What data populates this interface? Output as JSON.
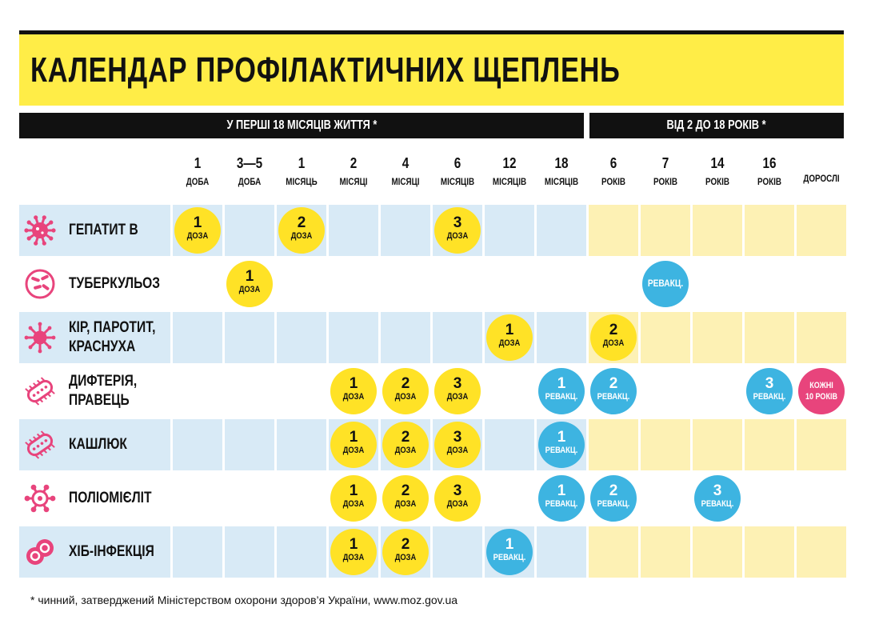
{
  "title": "КАЛЕНДАР ПРОФІЛАКТИЧНИХ ЩЕПЛЕНЬ",
  "sections": {
    "infant": "У ПЕРШІ 18 МІСЯЦІВ ЖИТТЯ *",
    "older": "ВІД 2 ДО 18 РОКІВ *"
  },
  "columns": [
    {
      "num": "1",
      "unit": "ДОБА"
    },
    {
      "num": "3—5",
      "unit": "ДОБА"
    },
    {
      "num": "1",
      "unit": "МІСЯЦЬ"
    },
    {
      "num": "2",
      "unit": "МІСЯЦІ"
    },
    {
      "num": "4",
      "unit": "МІСЯЦІ"
    },
    {
      "num": "6",
      "unit": "МІСЯЦІВ"
    },
    {
      "num": "12",
      "unit": "МІСЯЦІВ"
    },
    {
      "num": "18",
      "unit": "МІСЯЦІВ"
    },
    {
      "num": "6",
      "unit": "РОКІВ"
    },
    {
      "num": "7",
      "unit": "РОКІВ"
    },
    {
      "num": "14",
      "unit": "РОКІВ"
    },
    {
      "num": "16",
      "unit": "РОКІВ"
    },
    {
      "num": "",
      "unit": "ДОРОСЛІ"
    }
  ],
  "rows": [
    {
      "lines": [
        "ГЕПАТИТ В"
      ],
      "icon": "virus-icon",
      "shaded": true,
      "doses": [
        {
          "col": 0,
          "num": "1",
          "unit": "ДОЗА",
          "color": "yellow"
        },
        {
          "col": 2,
          "num": "2",
          "unit": "ДОЗА",
          "color": "yellow"
        },
        {
          "col": 5,
          "num": "3",
          "unit": "ДОЗА",
          "color": "yellow"
        }
      ]
    },
    {
      "lines": [
        "ТУБЕРКУЛЬОЗ"
      ],
      "icon": "bacteria-icon",
      "shaded": false,
      "doses": [
        {
          "col": 1,
          "num": "1",
          "unit": "ДОЗА",
          "color": "yellow"
        },
        {
          "col": 9,
          "num": "",
          "unit": "РЕВАКЦ.",
          "color": "blue"
        }
      ]
    },
    {
      "lines": [
        "КІР, ПАРОТИТ,",
        "КРАСНУХА"
      ],
      "icon": "measles-virus-icon",
      "shaded": true,
      "doses": [
        {
          "col": 6,
          "num": "1",
          "unit": "ДОЗА",
          "color": "yellow"
        },
        {
          "col": 8,
          "num": "2",
          "unit": "ДОЗА",
          "color": "yellow"
        }
      ]
    },
    {
      "lines": [
        "ДИФТЕРІЯ,",
        "ПРАВЕЦЬ"
      ],
      "icon": "bacillus-icon",
      "shaded": false,
      "doses": [
        {
          "col": 3,
          "num": "1",
          "unit": "ДОЗА",
          "color": "yellow"
        },
        {
          "col": 4,
          "num": "2",
          "unit": "ДОЗА",
          "color": "yellow"
        },
        {
          "col": 5,
          "num": "3",
          "unit": "ДОЗА",
          "color": "yellow"
        },
        {
          "col": 7,
          "num": "1",
          "unit": "РЕВАКЦ.",
          "color": "blue"
        },
        {
          "col": 8,
          "num": "2",
          "unit": "РЕВАКЦ.",
          "color": "blue"
        },
        {
          "col": 11,
          "num": "3",
          "unit": "РЕВАКЦ.",
          "color": "blue"
        },
        {
          "col": 12,
          "num": "КОЖНІ",
          "unit": "10 РОКІВ",
          "color": "pink"
        }
      ]
    },
    {
      "lines": [
        "КАШЛЮК"
      ],
      "icon": "bacillus-icon",
      "shaded": true,
      "doses": [
        {
          "col": 3,
          "num": "1",
          "unit": "ДОЗА",
          "color": "yellow"
        },
        {
          "col": 4,
          "num": "2",
          "unit": "ДОЗА",
          "color": "yellow"
        },
        {
          "col": 5,
          "num": "3",
          "unit": "ДОЗА",
          "color": "yellow"
        },
        {
          "col": 7,
          "num": "1",
          "unit": "РЕВАКЦ.",
          "color": "blue"
        }
      ]
    },
    {
      "lines": [
        "ПОЛІОМІЄЛІТ"
      ],
      "icon": "polio-virus-icon",
      "shaded": false,
      "doses": [
        {
          "col": 3,
          "num": "1",
          "unit": "ДОЗА",
          "color": "yellow"
        },
        {
          "col": 4,
          "num": "2",
          "unit": "ДОЗА",
          "color": "yellow"
        },
        {
          "col": 5,
          "num": "3",
          "unit": "ДОЗА",
          "color": "yellow"
        },
        {
          "col": 7,
          "num": "1",
          "unit": "РЕВАКЦ.",
          "color": "blue"
        },
        {
          "col": 8,
          "num": "2",
          "unit": "РЕВАКЦ.",
          "color": "blue"
        },
        {
          "col": 10,
          "num": "3",
          "unit": "РЕВАКЦ.",
          "color": "blue"
        }
      ]
    },
    {
      "lines": [
        "ХІБ-ІНФЕКЦІЯ"
      ],
      "icon": "hib-cell-icon",
      "shaded": true,
      "doses": [
        {
          "col": 3,
          "num": "1",
          "unit": "ДОЗА",
          "color": "yellow"
        },
        {
          "col": 4,
          "num": "2",
          "unit": "ДОЗА",
          "color": "yellow"
        },
        {
          "col": 6,
          "num": "1",
          "unit": "РЕВАКЦ.",
          "color": "blue"
        }
      ]
    }
  ],
  "colors": {
    "banner": "#ffed47",
    "infant_shade": "#d8eaf6",
    "older_shade": "#fdf1b4",
    "dose_yellow": "#ffe226",
    "revacc_blue": "#3db4e1",
    "adult_pink": "#e8447c",
    "icon_pink": "#e8447c"
  },
  "footnote": "* чинний, затверджений Міністерством охорони здоров’я України, www.moz.gov.ua"
}
